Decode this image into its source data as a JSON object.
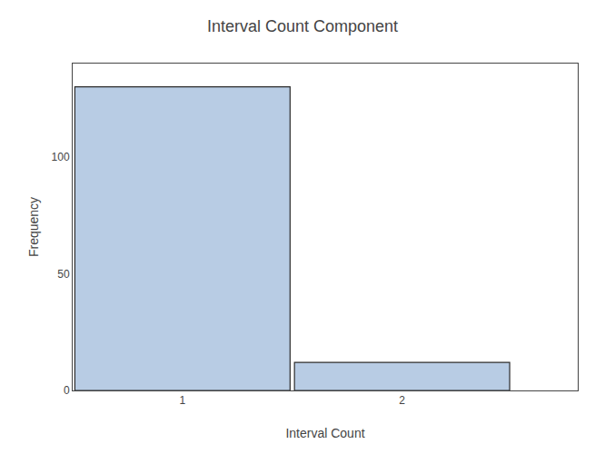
{
  "chart_data": {
    "type": "bar",
    "title": "Interval Count Component",
    "xlabel": "Interval Count",
    "ylabel": "Frequency",
    "x": [
      1,
      2
    ],
    "values": [
      130,
      12
    ],
    "color": "#b8cce4",
    "xlim": [
      0.5,
      2.8
    ],
    "xticks": [
      1,
      2
    ],
    "ylim": [
      0,
      140
    ],
    "yticks": [
      0,
      50,
      100
    ],
    "grid": false
  }
}
